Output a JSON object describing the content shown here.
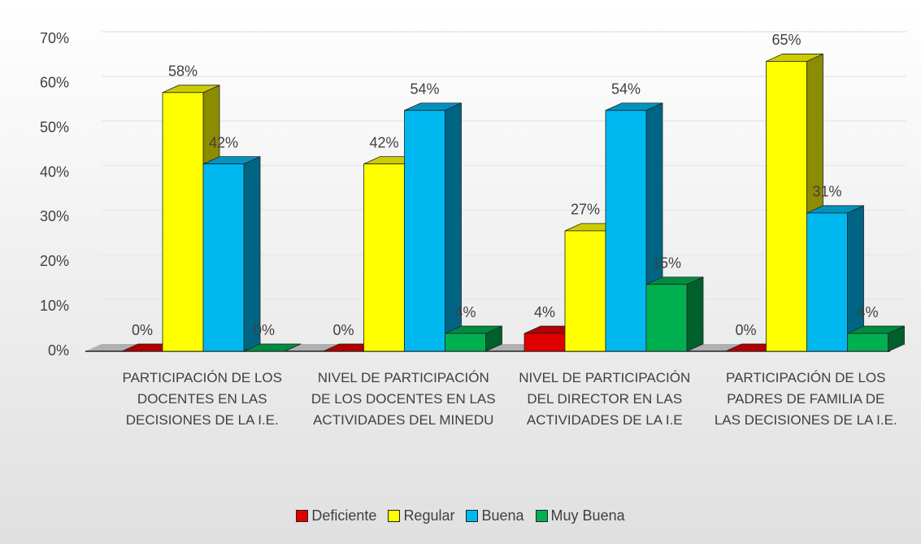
{
  "chart_data": {
    "type": "bar3d",
    "categories": [
      "PARTICIPACIÓN DE LOS DOCENTES EN LAS DECISIONES DE LA I.E.",
      "NIVEL DE PARTICIPACIÓN DE LOS DOCENTES EN LAS ACTIVIDADES DEL MINEDU",
      "NIVEL DE PARTICIPACIÓN DEL DIRECTOR EN LAS ACTIVIDADES DE LA I.E",
      "PARTICIPACIÓN DE LOS PADRES DE FAMILIA DE LAS DECISIONES DE LA I.E."
    ],
    "series": [
      {
        "name": "Deficiente",
        "color": "#e00000",
        "values": [
          0,
          0,
          4,
          0
        ],
        "value_labels": [
          "0%",
          "0%",
          "4%",
          "0%"
        ]
      },
      {
        "name": "Regular",
        "color": "#ffff00",
        "values": [
          58,
          42,
          27,
          65
        ],
        "value_labels": [
          "58%",
          "42%",
          "27%",
          "65%"
        ]
      },
      {
        "name": "Buena",
        "color": "#00b8f0",
        "values": [
          42,
          54,
          54,
          31
        ],
        "value_labels": [
          "42%",
          "54%",
          "54%",
          "31%"
        ]
      },
      {
        "name": "Muy Buena",
        "color": "#00b050",
        "values": [
          0,
          4,
          15,
          4
        ],
        "value_labels": [
          "0%",
          "4%",
          "15%",
          "4%"
        ]
      }
    ],
    "ylim": [
      0,
      70
    ],
    "yticks": [
      {
        "value": 0,
        "label": "0%"
      },
      {
        "value": 10,
        "label": "10%"
      },
      {
        "value": 20,
        "label": "20%"
      },
      {
        "value": 30,
        "label": "30%"
      },
      {
        "value": 40,
        "label": "40%"
      },
      {
        "value": 50,
        "label": "50%"
      },
      {
        "value": 60,
        "label": "60%"
      },
      {
        "value": 70,
        "label": "70%"
      }
    ],
    "grid": true,
    "legend": "bottom"
  }
}
